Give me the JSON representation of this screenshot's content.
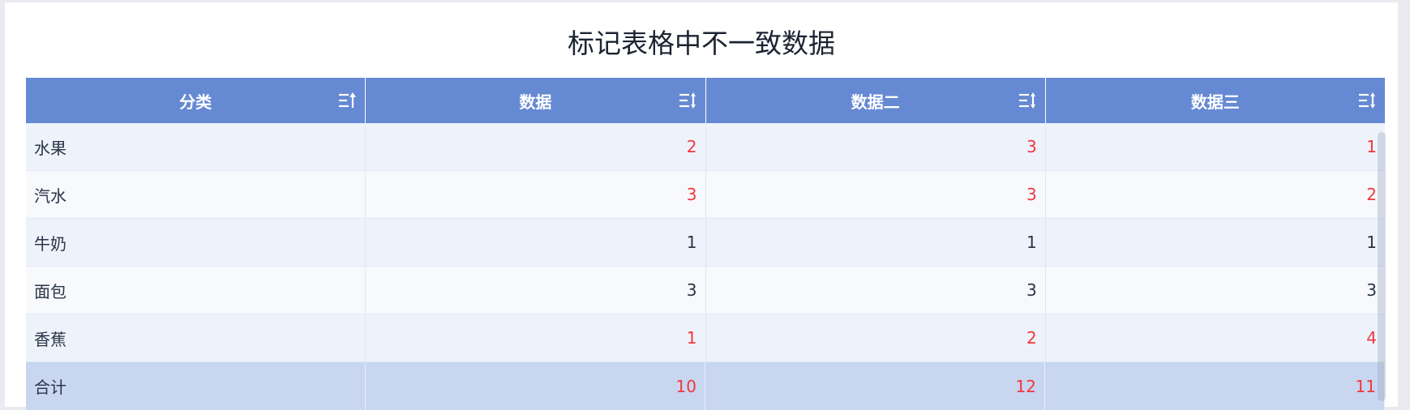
{
  "title": "标记表格中不一致数据",
  "colors": {
    "header_bg": "#6689d3",
    "mismatch": "#f1373c",
    "total_bg": "#c8d6f0"
  },
  "columns": [
    {
      "label": "分类",
      "sort_icon": "sort-ascending-icon"
    },
    {
      "label": "数据",
      "sort_icon": "sort-both-icon"
    },
    {
      "label": "数据二",
      "sort_icon": "sort-both-icon"
    },
    {
      "label": "数据三",
      "sort_icon": "sort-both-icon"
    }
  ],
  "rows": [
    {
      "category": "水果",
      "values": [
        "2",
        "3",
        "1"
      ],
      "mismatch": true
    },
    {
      "category": "汽水",
      "values": [
        "3",
        "3",
        "2"
      ],
      "mismatch": true
    },
    {
      "category": "牛奶",
      "values": [
        "1",
        "1",
        "1"
      ],
      "mismatch": false
    },
    {
      "category": "面包",
      "values": [
        "3",
        "3",
        "3"
      ],
      "mismatch": false
    },
    {
      "category": "香蕉",
      "values": [
        "1",
        "2",
        "4"
      ],
      "mismatch": true
    }
  ],
  "total": {
    "category": "合计",
    "values": [
      "10",
      "12",
      "11"
    ],
    "mismatch": true
  }
}
